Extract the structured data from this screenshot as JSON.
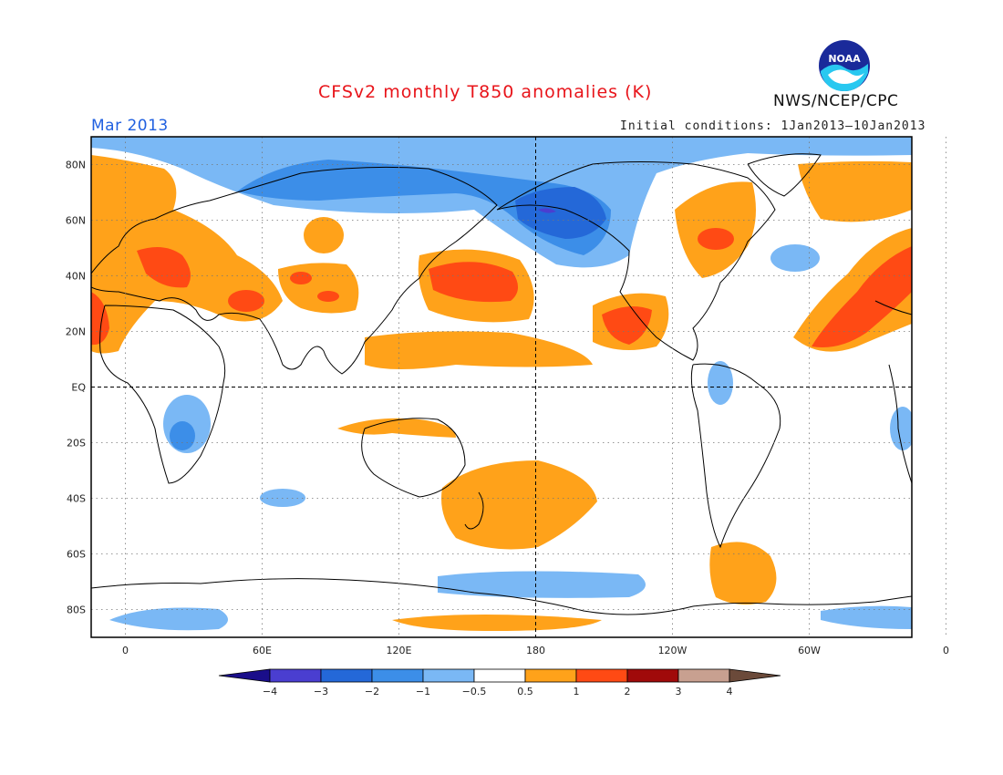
{
  "title": "CFSv2 monthly T850 anomalies (K)",
  "organization": "NWS/NCEP/CPC",
  "logo_text": "NOAA",
  "valid_month": "Mar 2013",
  "initial_conditions": "Initial conditions: 1Jan2013–10Jan2013",
  "colors": {
    "title": "#e8141a",
    "month": "#2060e0",
    "land_outline": "#000000"
  },
  "latitude_labels": [
    "80N",
    "60N",
    "40N",
    "20N",
    "EQ",
    "20S",
    "40S",
    "60S",
    "80S"
  ],
  "longitude_labels": [
    "0",
    "60E",
    "120E",
    "180",
    "120W",
    "60W",
    "0"
  ],
  "colorbar": {
    "labels": [
      "−4",
      "−3",
      "−2",
      "−1",
      "−0.5",
      "0.5",
      "1",
      "2",
      "3",
      "4"
    ],
    "colors": [
      "#1a0e8a",
      "#4a3ed0",
      "#2468d8",
      "#3c8ee8",
      "#7ab8f5",
      "#ffffff",
      "#ffa21a",
      "#ff4a14",
      "#a00a0a",
      "#c8a090",
      "#6b4a3a"
    ]
  }
}
